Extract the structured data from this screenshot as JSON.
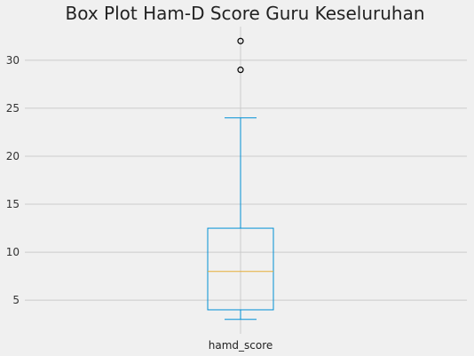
{
  "chart_data": {
    "type": "box",
    "title": "Box Plot Ham-D Score Guru Keseluruhan",
    "xlabel": "",
    "ylabel": "",
    "categories": [
      "hamd_score"
    ],
    "ylim": [
      1.5,
      33.5
    ],
    "yticks": [
      5,
      10,
      15,
      20,
      25,
      30
    ],
    "grid": true,
    "legend": "none",
    "boxes": [
      {
        "name": "hamd_score",
        "whisker_low": 3,
        "q1": 4,
        "median": 8,
        "q3": 12.5,
        "whisker_high": 24,
        "outliers": [
          29,
          32
        ]
      }
    ],
    "colors": {
      "background": "#f0f0f0",
      "grid": "#cbcbcb",
      "box": "#008fd5",
      "median": "#e5ae38",
      "outlier": "#000000"
    }
  }
}
